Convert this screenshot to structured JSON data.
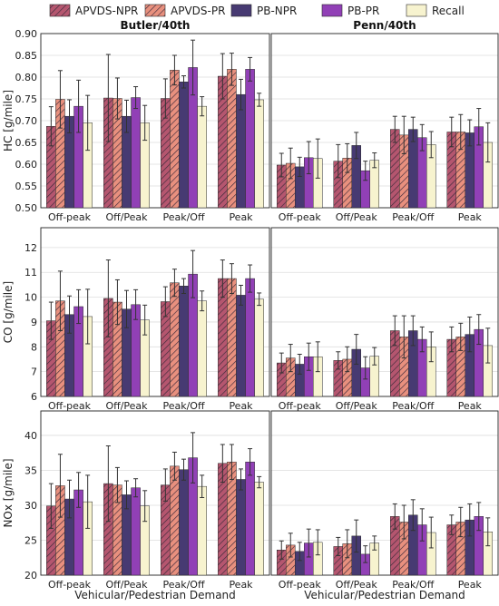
{
  "chart_data": {
    "type": "bar",
    "layout": "3 rows x 2 columns, shared y per row",
    "legend": {
      "placement": "top",
      "entries": [
        "APVDS-NPR",
        "APVDS-PR",
        "PB-NPR",
        "PB-PR",
        "Recall"
      ]
    },
    "colors": {
      "APVDS-NPR": "#b5566f",
      "APVDS-PR": "#e8907e",
      "PB-NPR": "#473a72",
      "PB-PR": "#9140b6",
      "Recall": "#f7f3cf",
      "hatch": "#3b2a3a",
      "errorbar": "#333333",
      "grid": "#dddddd"
    },
    "column_titles": [
      "Butler/40th",
      "Penn/40th"
    ],
    "categories": [
      "Off-peak",
      "Off/Peak",
      "Peak/Off",
      "Peak"
    ],
    "xlabel": "Vehicular/Pedestrian Demand",
    "grid": true,
    "panels": [
      {
        "row": 0,
        "col": 0,
        "title": "Butler/40th",
        "ylabel": "HC [g/mile]",
        "ylim": [
          0.5,
          0.9
        ],
        "yticks": [
          "0.50",
          "0.55",
          "0.60",
          "0.65",
          "0.70",
          "0.75",
          "0.80",
          "0.85",
          "0.90"
        ],
        "series": [
          {
            "name": "APVDS-NPR",
            "values": [
              0.687,
              0.752,
              0.751,
              0.802
            ],
            "errors": [
              0.045,
              0.1,
              0.045,
              0.052
            ]
          },
          {
            "name": "APVDS-PR",
            "values": [
              0.749,
              0.751,
              0.816,
              0.818
            ],
            "errors": [
              0.066,
              0.047,
              0.034,
              0.037
            ]
          },
          {
            "name": "PB-NPR",
            "values": [
              0.71,
              0.71,
              0.789,
              0.76
            ],
            "errors": [
              0.038,
              0.037,
              0.014,
              0.035
            ]
          },
          {
            "name": "PB-PR",
            "values": [
              0.733,
              0.753,
              0.822,
              0.818
            ],
            "errors": [
              0.06,
              0.025,
              0.063,
              0.027
            ]
          },
          {
            "name": "Recall",
            "values": [
              0.695,
              0.695,
              0.733,
              0.748
            ],
            "errors": [
              0.063,
              0.04,
              0.022,
              0.015
            ]
          }
        ]
      },
      {
        "row": 0,
        "col": 1,
        "title": "Penn/40th",
        "ylabel": "",
        "ylim": [
          0.5,
          0.9
        ],
        "yticks": [],
        "series": [
          {
            "name": "APVDS-NPR",
            "values": [
              0.598,
              0.607,
              0.68,
              0.674
            ],
            "errors": [
              0.027,
              0.038,
              0.03,
              0.034
            ]
          },
          {
            "name": "APVDS-PR",
            "values": [
              0.602,
              0.614,
              0.667,
              0.674
            ],
            "errors": [
              0.035,
              0.033,
              0.043,
              0.04
            ]
          },
          {
            "name": "PB-NPR",
            "values": [
              0.594,
              0.643,
              0.68,
              0.672
            ],
            "errors": [
              0.022,
              0.03,
              0.028,
              0.03
            ]
          },
          {
            "name": "PB-PR",
            "values": [
              0.615,
              0.585,
              0.661,
              0.686
            ],
            "errors": [
              0.037,
              0.022,
              0.03,
              0.042
            ]
          },
          {
            "name": "Recall",
            "values": [
              0.613,
              0.609,
              0.645,
              0.65
            ],
            "errors": [
              0.045,
              0.017,
              0.03,
              0.045
            ]
          }
        ]
      },
      {
        "row": 1,
        "col": 0,
        "title": "",
        "ylabel": "CO [g/mile]",
        "ylim": [
          6,
          12.8
        ],
        "yticks": [
          "6",
          "7",
          "8",
          "9",
          "10",
          "11",
          "12"
        ],
        "series": [
          {
            "name": "APVDS-NPR",
            "values": [
              9.05,
              9.95,
              9.82,
              10.75
            ],
            "errors": [
              0.75,
              1.55,
              0.6,
              0.75
            ]
          },
          {
            "name": "APVDS-PR",
            "values": [
              9.85,
              9.8,
              10.58,
              10.75
            ],
            "errors": [
              1.2,
              0.9,
              0.55,
              0.6
            ]
          },
          {
            "name": "PB-NPR",
            "values": [
              9.3,
              9.52,
              10.45,
              10.08
            ],
            "errors": [
              0.75,
              0.75,
              0.3,
              0.4
            ]
          },
          {
            "name": "PB-PR",
            "values": [
              9.62,
              9.7,
              10.93,
              10.75
            ],
            "errors": [
              0.68,
              0.6,
              0.95,
              0.55
            ]
          },
          {
            "name": "Recall",
            "values": [
              9.22,
              9.08,
              9.85,
              9.92
            ],
            "errors": [
              1.1,
              0.6,
              0.4,
              0.25
            ]
          }
        ]
      },
      {
        "row": 1,
        "col": 1,
        "title": "",
        "ylabel": "",
        "ylim": [
          6,
          12.8
        ],
        "yticks": [],
        "series": [
          {
            "name": "APVDS-NPR",
            "values": [
              7.35,
              7.45,
              8.65,
              8.3
            ],
            "errors": [
              0.4,
              0.35,
              0.6,
              0.5
            ]
          },
          {
            "name": "APVDS-PR",
            "values": [
              7.55,
              7.5,
              8.4,
              8.4
            ],
            "errors": [
              0.55,
              0.5,
              0.85,
              0.55
            ]
          },
          {
            "name": "PB-NPR",
            "values": [
              7.3,
              7.9,
              8.65,
              8.5
            ],
            "errors": [
              0.4,
              0.6,
              0.6,
              0.7
            ]
          },
          {
            "name": "PB-PR",
            "values": [
              7.6,
              7.15,
              8.3,
              8.7
            ],
            "errors": [
              0.55,
              0.45,
              0.5,
              0.6
            ]
          },
          {
            "name": "Recall",
            "values": [
              7.6,
              7.62,
              8.0,
              8.05
            ],
            "errors": [
              0.6,
              0.35,
              0.6,
              0.7
            ]
          }
        ]
      },
      {
        "row": 2,
        "col": 0,
        "title": "",
        "ylabel": "NOx [g/mile]",
        "ylim": [
          20,
          43.5
        ],
        "yticks": [
          "20",
          "25",
          "30",
          "35",
          "40"
        ],
        "series": [
          {
            "name": "APVDS-NPR",
            "values": [
              29.9,
              33.1,
              32.9,
              36.0
            ],
            "errors": [
              3.2,
              5.4,
              2.3,
              2.7
            ]
          },
          {
            "name": "APVDS-PR",
            "values": [
              32.8,
              32.9,
              35.6,
              36.2
            ],
            "errors": [
              4.5,
              2.5,
              2.0,
              2.5
            ]
          },
          {
            "name": "PB-NPR",
            "values": [
              30.9,
              31.5,
              35.1,
              33.7
            ],
            "errors": [
              2.7,
              2.0,
              1.5,
              1.5
            ]
          },
          {
            "name": "PB-PR",
            "values": [
              32.2,
              32.5,
              36.8,
              36.2
            ],
            "errors": [
              2.5,
              1.3,
              3.6,
              1.9
            ]
          },
          {
            "name": "Recall",
            "values": [
              30.5,
              29.9,
              32.7,
              33.3
            ],
            "errors": [
              3.8,
              2.2,
              1.6,
              0.8
            ]
          }
        ]
      },
      {
        "row": 2,
        "col": 1,
        "title": "",
        "ylabel": "",
        "ylim": [
          20,
          43.5
        ],
        "yticks": [],
        "series": [
          {
            "name": "APVDS-NPR",
            "values": [
              23.6,
              24.1,
              28.4,
              27.2
            ],
            "errors": [
              1.3,
              1.3,
              1.8,
              1.4
            ]
          },
          {
            "name": "APVDS-PR",
            "values": [
              24.3,
              24.5,
              27.6,
              27.6
            ],
            "errors": [
              1.7,
              2.0,
              2.4,
              2.1
            ]
          },
          {
            "name": "PB-NPR",
            "values": [
              23.4,
              25.6,
              28.6,
              27.9
            ],
            "errors": [
              1.3,
              2.3,
              2.2,
              2.3
            ]
          },
          {
            "name": "PB-PR",
            "values": [
              24.6,
              23.0,
              27.2,
              28.4
            ],
            "errors": [
              2.0,
              1.2,
              2.3,
              2.0
            ]
          },
          {
            "name": "Recall",
            "values": [
              24.7,
              24.6,
              26.1,
              26.2
            ],
            "errors": [
              1.8,
              1.0,
              2.2,
              2.0
            ]
          }
        ]
      }
    ]
  }
}
